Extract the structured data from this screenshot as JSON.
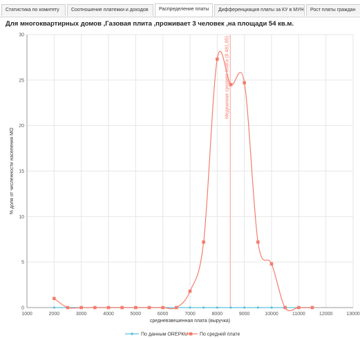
{
  "tabs": [
    {
      "label": "Статистика по комитету"
    },
    {
      "label": "Соотношение платежки и доходов"
    },
    {
      "label": "Распределение платы",
      "active": true
    },
    {
      "label": "Дифференциация платы за КУ в МУН"
    },
    {
      "label": "Рост платы граждан"
    }
  ],
  "page_title": "Для многоквартирных домов ,Газовая плита ,проживает 3 человек ,на площади 54 кв.м.",
  "chart_data": {
    "type": "line",
    "xlabel": "средневзвешенная плата (выручка)",
    "ylabel": "% доля от численности населения МО",
    "xlim": [
      1000,
      13000
    ],
    "ylim": [
      0,
      30
    ],
    "x_ticks": [
      1000,
      2000,
      3000,
      4000,
      5000,
      6000,
      7000,
      8000,
      9000,
      10000,
      11000,
      12000,
      13000
    ],
    "y_ticks": [
      0,
      5,
      10,
      15,
      20,
      25,
      30
    ],
    "grid": true,
    "legend_position": "bottom",
    "median_line": {
      "x": 8481.85,
      "label": "Медианная средняя плата (8 481,85)"
    },
    "series": [
      {
        "name": "По данным ОREPKU",
        "color": "#5bc0de",
        "x": [
          2000,
          2500,
          3000,
          3500,
          4000,
          4500,
          5000,
          5500,
          6000,
          6500,
          7000,
          7500,
          8000,
          8500,
          9000,
          9500,
          10000,
          10500,
          11000,
          11500
        ],
        "y": [
          0,
          0,
          0,
          0,
          0,
          0,
          0,
          0,
          0,
          0,
          0,
          0,
          0,
          0,
          0,
          0,
          0,
          0,
          0,
          0
        ]
      },
      {
        "name": "По средней плате",
        "color": "#f47c6e",
        "x": [
          2000,
          2500,
          3000,
          3500,
          4000,
          4500,
          5000,
          5500,
          6000,
          6500,
          7000,
          7500,
          8000,
          8500,
          9000,
          9500,
          10000,
          10500,
          11000,
          11500
        ],
        "y": [
          1.0,
          0,
          0,
          0,
          0,
          0,
          0,
          0,
          0,
          0,
          1.8,
          7.2,
          27.3,
          24.5,
          24.7,
          7.2,
          4.8,
          0,
          0,
          0
        ]
      }
    ]
  }
}
